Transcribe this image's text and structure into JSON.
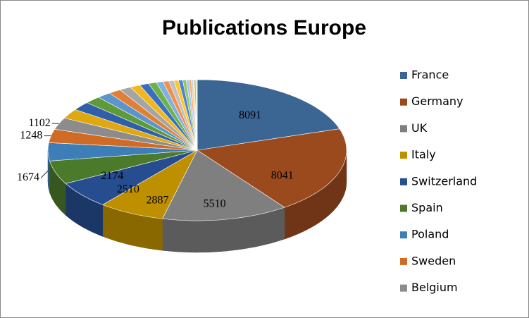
{
  "chart_data": {
    "type": "pie3d",
    "title": "Publications Europe",
    "categories": [
      "France",
      "Germany",
      "UK",
      "Italy",
      "Switzerland",
      "Spain",
      "Poland",
      "Sweden",
      "Belgium",
      null,
      null,
      null,
      null,
      null,
      null,
      null,
      null,
      null,
      null,
      null,
      null,
      null,
      null,
      null,
      null,
      null,
      null,
      null,
      null,
      null,
      null
    ],
    "values": [
      8091,
      8041,
      5510,
      2887,
      2510,
      2174,
      1674,
      1248,
      1102,
      900,
      800,
      700,
      600,
      550,
      500,
      450,
      400,
      350,
      300,
      250,
      220,
      200,
      180,
      150,
      120,
      100,
      80,
      60,
      50,
      40,
      30
    ],
    "colors": [
      "#3b6592",
      "#9b4a1e",
      "#7f7f7f",
      "#be9000",
      "#254d8f",
      "#4b7a2b",
      "#3d7eb8",
      "#d06b26",
      "#8c8c8c",
      "#e0a810",
      "#2f5fa8",
      "#5f9a38",
      "#5b95cc",
      "#e08038",
      "#a5a5a5",
      "#f0b820",
      "#3a6fc0",
      "#70b048",
      "#80b0e0",
      "#f09050",
      "#c0c0c0",
      "#ffc830",
      "#5080d0",
      "#90c868",
      "#a0c8f0",
      "#f8a870",
      "#d0d0d0",
      "#ffd860",
      "#7098e0",
      "#b0d890",
      "#c0d8f8"
    ],
    "legend": "right"
  }
}
